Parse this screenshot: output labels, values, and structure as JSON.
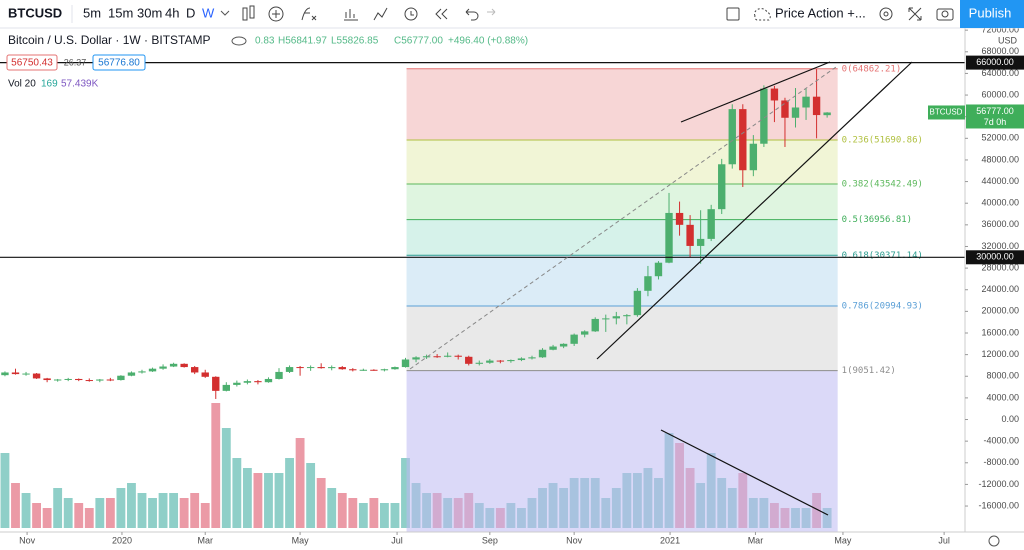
{
  "toolbar": {
    "symbol": "BTCUSD",
    "intervals": [
      "5m",
      "15m",
      "30m",
      "4h",
      "D",
      "W"
    ],
    "layout": "Price Action +...",
    "publish": "Publish"
  },
  "chart_data": {
    "type": "candlestick",
    "title": "Bitcoin / U.S. Dollar · 1W · BITSTAMP",
    "ohlc_text": [
      "0.83",
      "H56841.97",
      "L55826.85",
      "C56777.00",
      "+496.40 (+0.88%)"
    ],
    "quote_boxes": [
      "56750.43",
      "26.37",
      "56776.80"
    ],
    "volume_legend": [
      "Vol 20",
      "169",
      "57.439K"
    ],
    "currency": "USD",
    "candles": [
      [
        8200,
        8900,
        8000,
        8700
      ],
      [
        8700,
        9400,
        8300,
        8400
      ],
      [
        8400,
        8800,
        8100,
        8500
      ],
      [
        8500,
        8600,
        7500,
        7600
      ],
      [
        7600,
        7700,
        6900,
        7300
      ],
      [
        7300,
        7500,
        7000,
        7400
      ],
      [
        7400,
        7700,
        7100,
        7500
      ],
      [
        7500,
        7600,
        7100,
        7300
      ],
      [
        7300,
        7600,
        7000,
        7200
      ],
      [
        7200,
        7500,
        6900,
        7400
      ],
      [
        7400,
        7700,
        7100,
        7300
      ],
      [
        7300,
        8200,
        7200,
        8100
      ],
      [
        8100,
        8900,
        8000,
        8700
      ],
      [
        8700,
        9200,
        8500,
        8900
      ],
      [
        8900,
        9600,
        8800,
        9400
      ],
      [
        9400,
        10200,
        9200,
        9800
      ],
      [
        9800,
        10500,
        9700,
        10300
      ],
      [
        10300,
        10400,
        9600,
        9700
      ],
      [
        9700,
        9900,
        8400,
        8700
      ],
      [
        8700,
        9200,
        7700,
        7900
      ],
      [
        7900,
        8000,
        3800,
        5300
      ],
      [
        5300,
        6900,
        5200,
        6400
      ],
      [
        6400,
        7200,
        6100,
        6800
      ],
      [
        6800,
        7400,
        6500,
        7100
      ],
      [
        7100,
        7300,
        6500,
        6900
      ],
      [
        6900,
        7800,
        6800,
        7500
      ],
      [
        7500,
        9500,
        7400,
        8800
      ],
      [
        8800,
        10000,
        8600,
        9700
      ],
      [
        9700,
        9900,
        8100,
        9600
      ],
      [
        9600,
        10000,
        9000,
        9700
      ],
      [
        9700,
        10400,
        9400,
        9500
      ],
      [
        9500,
        10000,
        9100,
        9700
      ],
      [
        9700,
        9900,
        9200,
        9300
      ],
      [
        9300,
        9500,
        8900,
        9100
      ],
      [
        9100,
        9400,
        9000,
        9200
      ],
      [
        9200,
        9300,
        9000,
        9100
      ],
      [
        9100,
        9400,
        8900,
        9300
      ],
      [
        9300,
        9800,
        9200,
        9700
      ],
      [
        9700,
        11400,
        9600,
        11100
      ],
      [
        11100,
        11700,
        10600,
        11500
      ],
      [
        11500,
        12000,
        11200,
        11700
      ],
      [
        11700,
        12100,
        11400,
        11600
      ],
      [
        11600,
        12400,
        11500,
        11800
      ],
      [
        11800,
        12000,
        11100,
        11600
      ],
      [
        11600,
        11800,
        10000,
        10300
      ],
      [
        10300,
        10900,
        10000,
        10500
      ],
      [
        10500,
        11200,
        10300,
        10900
      ],
      [
        10900,
        11000,
        10400,
        10800
      ],
      [
        10800,
        11100,
        10500,
        11000
      ],
      [
        11000,
        11500,
        10800,
        11300
      ],
      [
        11300,
        11800,
        11100,
        11500
      ],
      [
        11500,
        13200,
        11400,
        12900
      ],
      [
        12900,
        13800,
        12800,
        13500
      ],
      [
        13500,
        14100,
        13200,
        14000
      ],
      [
        14000,
        15900,
        13600,
        15700
      ],
      [
        15700,
        16500,
        15200,
        16300
      ],
      [
        16300,
        18900,
        16200,
        18600
      ],
      [
        18600,
        19400,
        16200,
        18700
      ],
      [
        18700,
        19900,
        17600,
        19100
      ],
      [
        19100,
        19500,
        17600,
        19300
      ],
      [
        19300,
        24300,
        19000,
        23800
      ],
      [
        23800,
        28400,
        22800,
        26500
      ],
      [
        26500,
        29300,
        25900,
        29000
      ],
      [
        29000,
        41900,
        28900,
        38200
      ],
      [
        38200,
        40300,
        34000,
        36000
      ],
      [
        36000,
        37800,
        30000,
        32100
      ],
      [
        32100,
        38700,
        28800,
        33400
      ],
      [
        33400,
        39700,
        33000,
        38900
      ],
      [
        38900,
        48200,
        38000,
        47200
      ],
      [
        47200,
        58300,
        46400,
        57400
      ],
      [
        57400,
        58300,
        43000,
        46100
      ],
      [
        46100,
        52600,
        45000,
        51000
      ],
      [
        51000,
        61800,
        50400,
        61200
      ],
      [
        61200,
        61700,
        55000,
        59000
      ],
      [
        59000,
        59500,
        50400,
        55800
      ],
      [
        55800,
        61300,
        54000,
        57700
      ],
      [
        57700,
        61200,
        55400,
        59700
      ],
      [
        59700,
        64800,
        52000,
        56300
      ],
      [
        56280.83,
        56841.97,
        55826.85,
        56777
      ]
    ],
    "volumes": [
      75,
      45,
      35,
      25,
      20,
      40,
      30,
      25,
      20,
      30,
      30,
      40,
      45,
      35,
      30,
      35,
      35,
      30,
      35,
      25,
      125,
      100,
      70,
      60,
      55,
      55,
      55,
      70,
      90,
      65,
      50,
      40,
      35,
      30,
      25,
      30,
      25,
      25,
      70,
      45,
      35,
      35,
      30,
      30,
      35,
      25,
      20,
      20,
      25,
      20,
      30,
      40,
      45,
      40,
      50,
      50,
      50,
      30,
      40,
      55,
      55,
      60,
      50,
      95,
      85,
      60,
      45,
      75,
      50,
      40,
      55,
      30,
      30,
      25,
      20,
      20,
      20,
      35,
      20
    ],
    "up_color": "#4caf6e",
    "down_color": "#d32f2f",
    "volume_up_color": "#8fcfc8",
    "volume_down_color": "#eb9aa6",
    "ylim": [
      -20800,
      72400
    ],
    "yticks": [
      {
        "value": 72000,
        "label": "72000.00"
      },
      {
        "value": 68000,
        "label": "68000.00"
      },
      {
        "value": 64000,
        "label": "64000.00"
      },
      {
        "value": 60000,
        "label": "60000.00"
      },
      {
        "value": 56000,
        "label": "56000.00"
      },
      {
        "value": 52000,
        "label": "52000.00"
      },
      {
        "value": 48000,
        "label": "48000.00"
      },
      {
        "value": 44000,
        "label": "44000.00"
      },
      {
        "value": 40000,
        "label": "40000.00"
      },
      {
        "value": 36000,
        "label": "36000.00"
      },
      {
        "value": 32000,
        "label": "32000.00"
      },
      {
        "value": 28000,
        "label": "28000.00"
      },
      {
        "value": 24000,
        "label": "24000.00"
      },
      {
        "value": 20000,
        "label": "20000.00"
      },
      {
        "value": 16000,
        "label": "16000.00"
      },
      {
        "value": 12000,
        "label": "12000.00"
      },
      {
        "value": 8000,
        "label": "8000.00"
      },
      {
        "value": 4000,
        "label": "4000.00"
      },
      {
        "value": 0,
        "label": "0.00"
      },
      {
        "value": -4000,
        "label": "-4000.00"
      },
      {
        "value": -8000,
        "label": "-8000.00"
      },
      {
        "value": -12000,
        "label": "-12000.00"
      },
      {
        "value": -16000,
        "label": "-16000.00"
      }
    ],
    "vlim": [
      0,
      130
    ],
    "xlim": [
      -0.47,
      91.08
    ],
    "xticks": [
      {
        "value": 2.1,
        "label": "Nov"
      },
      {
        "value": 11.1,
        "label": "2020"
      },
      {
        "value": 19,
        "label": "Mar"
      },
      {
        "value": 28,
        "label": "May"
      },
      {
        "value": 37.2,
        "label": "Jul"
      },
      {
        "value": 46,
        "label": "Sep"
      },
      {
        "value": 54,
        "label": "Nov"
      },
      {
        "value": 63.1,
        "label": "2021"
      },
      {
        "value": 71.2,
        "label": "Mar"
      },
      {
        "value": 79.5,
        "label": "May"
      },
      {
        "value": 89.1,
        "label": "Jul"
      }
    ],
    "fib": {
      "start": 38.1,
      "end": 79,
      "levels": [
        {
          "value": 64862.21,
          "label": "0(64862.21)"
        },
        {
          "value": 51690.86,
          "label": "0.236(51690.86)"
        },
        {
          "value": 43542.49,
          "label": "0.382(43542.49)"
        },
        {
          "value": 36956.81,
          "label": "0.5(36956.81)"
        },
        {
          "value": 30371.14,
          "label": "0.618(30371.14)"
        },
        {
          "value": 20994.93,
          "label": "0.786(20994.93)"
        },
        {
          "value": 9051.42,
          "label": "1(9051.42)"
        }
      ],
      "band_colors": [
        "#f6cfcf",
        "#eef3cf",
        "#d9f3da",
        "#cff0e6",
        "#d5e9f6",
        "#e5e5e5"
      ],
      "line_colors": [
        "#e57373",
        "#b0c040",
        "#5cb85c",
        "#3fae5a",
        "#2a9d8f",
        "#5a9fd6",
        "#8d8d8d"
      ],
      "extension_color": "#bdb9f3"
    },
    "hlines": [
      {
        "value": 66000,
        "label": "66000.00"
      },
      {
        "value": 30000,
        "label": "30000.00"
      }
    ],
    "last_price": {
      "value": 56777,
      "label": "56777.00",
      "countdown": "7d 0h",
      "color": "#3fae5a"
    }
  }
}
